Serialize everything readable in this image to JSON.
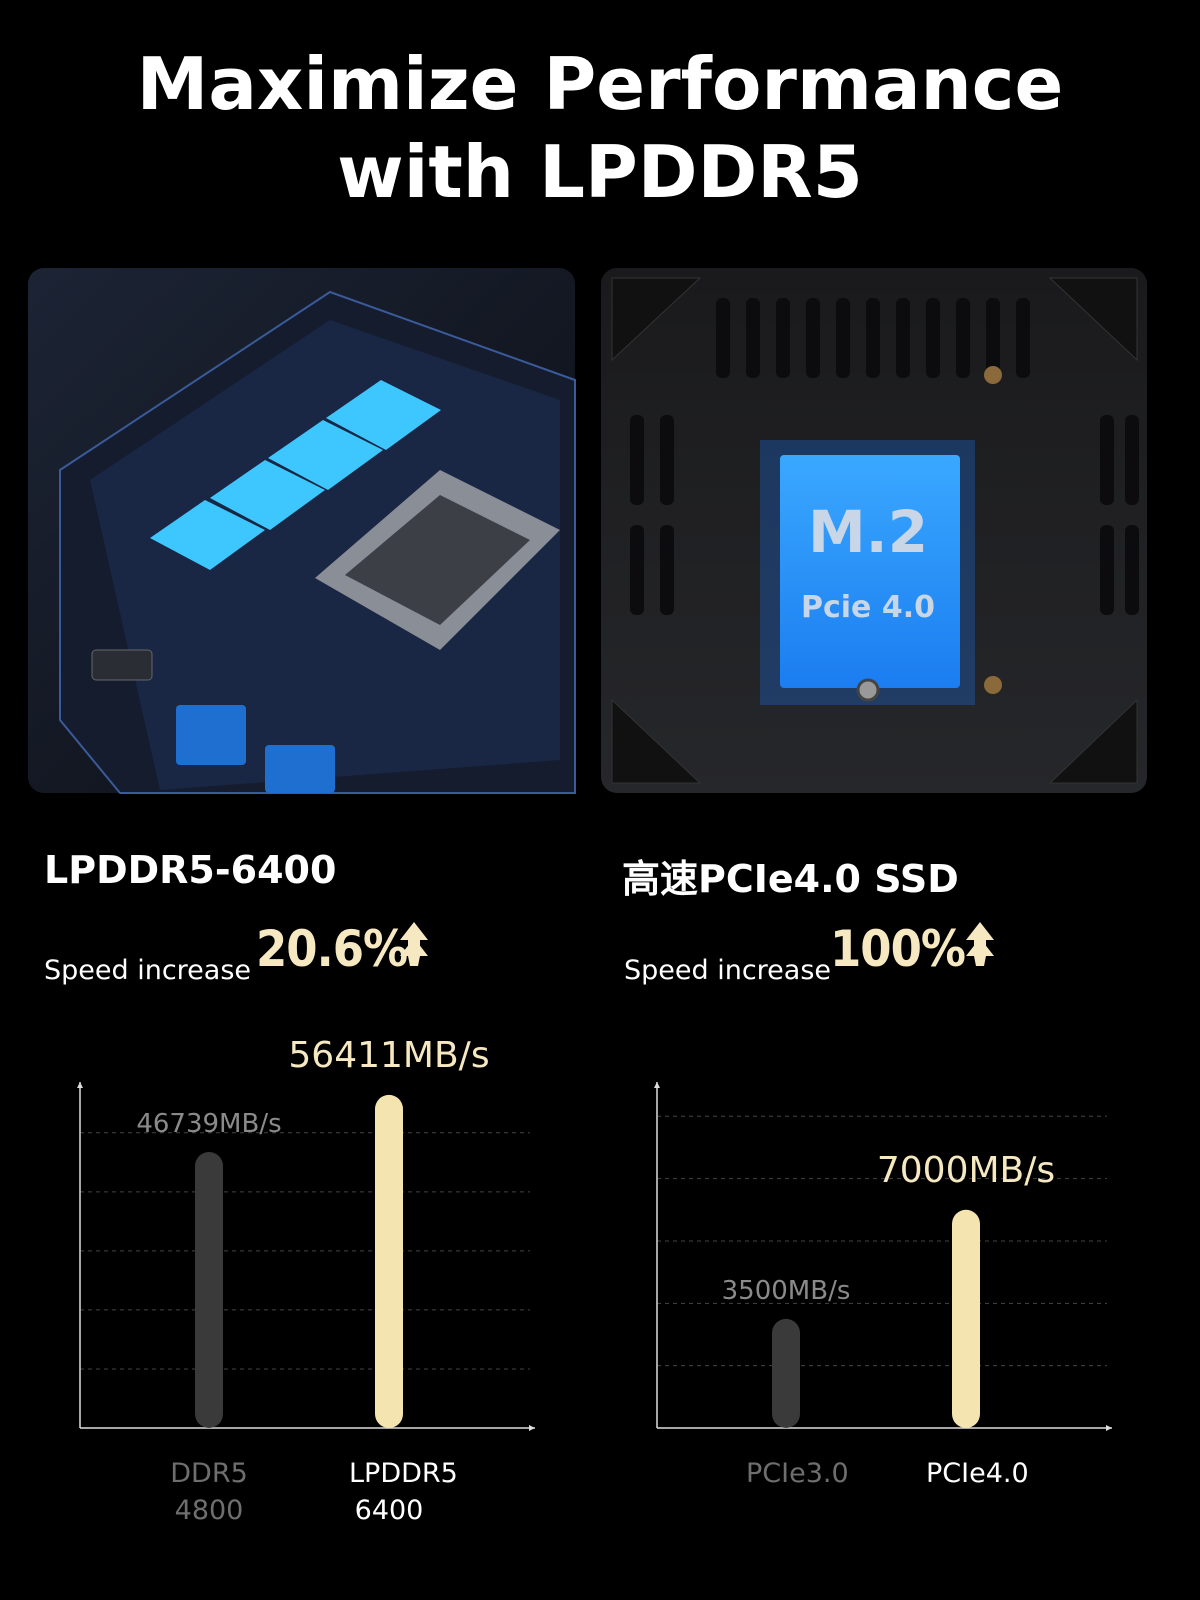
{
  "title": "Maximize Performance with LPDDR5",
  "photos": [
    {},
    {
      "label": "M.2",
      "sublabel": "Pcie 4.0"
    }
  ],
  "panels": [
    {
      "heading": "LPDDR5-6400",
      "speed_label": "Speed increase",
      "speed_value": "20.6%"
    },
    {
      "heading": "高速PCIe4.0 SSD",
      "speed_label": "Speed increase",
      "speed_value": "100%"
    }
  ],
  "chart_data": [
    {
      "type": "bar",
      "categories": [
        "DDR5 4800",
        "LPDDR5 6400"
      ],
      "values": [
        46739,
        56411
      ],
      "value_labels": [
        "46739MB/s",
        "56411MB/s"
      ],
      "colors": [
        "#3a3a3a",
        "#f4e4b0"
      ],
      "label_colors": [
        "#8a8a8a",
        "#f6e8c0"
      ],
      "category_colors": [
        "#6e6e6e",
        "#ffffff"
      ],
      "ylim": [
        0,
        58600
      ],
      "yticks": [
        10000,
        20000,
        30000,
        40000,
        50000
      ],
      "grid": true
    },
    {
      "type": "bar",
      "categories": [
        "PCIe3.0",
        "PCIe4.0"
      ],
      "values": [
        3500,
        7000
      ],
      "value_labels": [
        "3500MB/s",
        "7000MB/s"
      ],
      "colors": [
        "#3a3a3a",
        "#f4e4b0"
      ],
      "label_colors": [
        "#8a8a8a",
        "#f6e8c0"
      ],
      "category_colors": [
        "#6e6e6e",
        "#ffffff"
      ],
      "ylim": [
        0,
        11100
      ],
      "yticks": [
        2000,
        4000,
        6000,
        8000,
        10000
      ],
      "grid": true
    }
  ]
}
